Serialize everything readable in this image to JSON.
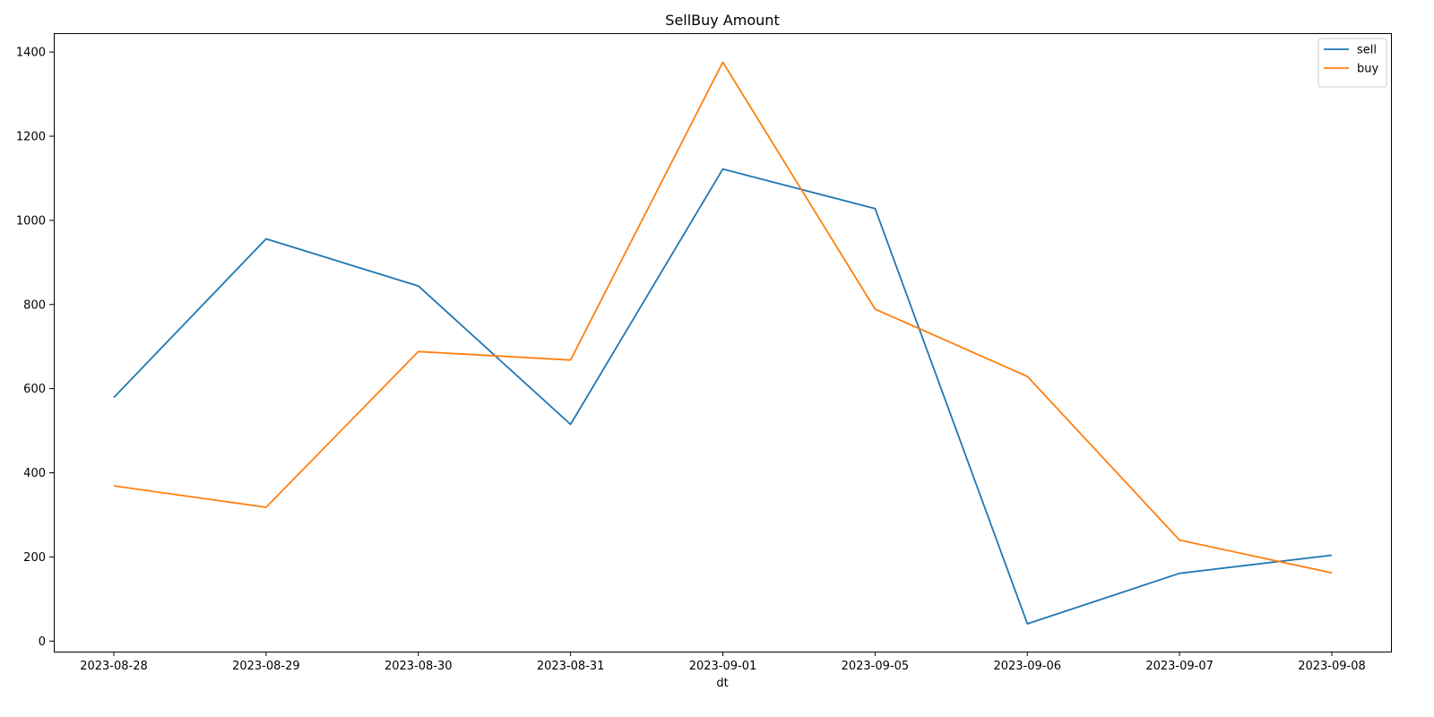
{
  "chart_data": {
    "type": "line",
    "title": "SellBuy Amount",
    "xlabel": "dt",
    "ylabel": "",
    "categories": [
      "2023-08-28",
      "2023-08-29",
      "2023-08-30",
      "2023-08-31",
      "2023-09-01",
      "2023-09-05",
      "2023-09-06",
      "2023-09-07",
      "2023-09-08"
    ],
    "ylim": [
      -25,
      1445
    ],
    "yticks": [
      0,
      200,
      400,
      600,
      800,
      1000,
      1200,
      1400
    ],
    "grid": false,
    "legend_position": "top-right",
    "series": [
      {
        "name": "sell",
        "color": "#1f77b4",
        "values": [
          579,
          956,
          844,
          515,
          1122,
          1028,
          41,
          161,
          204
        ]
      },
      {
        "name": "buy",
        "color": "#ff7f0e",
        "values": [
          369,
          318,
          688,
          668,
          1376,
          789,
          629,
          240,
          162
        ]
      }
    ]
  }
}
